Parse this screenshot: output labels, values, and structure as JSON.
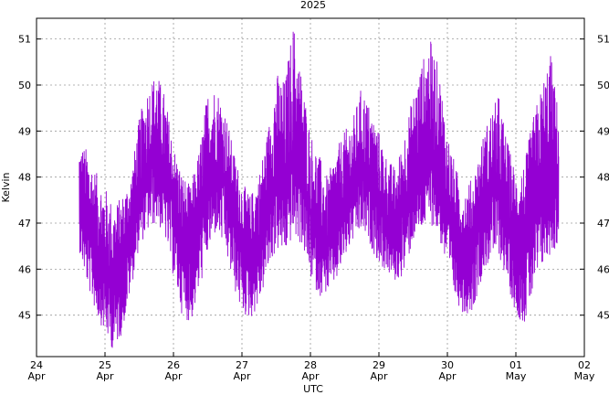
{
  "chart_data": {
    "type": "line",
    "title": "2025",
    "xlabel": "UTC",
    "ylabel": "Kelvin",
    "series_color": "#9400d3",
    "grid": true,
    "xlim": [
      "2025-04-24T00:00",
      "2025-05-02T00:00"
    ],
    "ylim": [
      44.1,
      51.45
    ],
    "x_ticks": [
      {
        "value": "2025-04-24T00:00",
        "day": "24",
        "month": "Apr"
      },
      {
        "value": "2025-04-25T00:00",
        "day": "25",
        "month": "Apr"
      },
      {
        "value": "2025-04-26T00:00",
        "day": "26",
        "month": "Apr"
      },
      {
        "value": "2025-04-27T00:00",
        "day": "27",
        "month": "Apr"
      },
      {
        "value": "2025-04-28T00:00",
        "day": "28",
        "month": "Apr"
      },
      {
        "value": "2025-04-29T00:00",
        "day": "29",
        "month": "Apr"
      },
      {
        "value": "2025-04-30T00:00",
        "day": "30",
        "month": "Apr"
      },
      {
        "value": "2025-05-01T00:00",
        "day": "01",
        "month": "May"
      },
      {
        "value": "2025-05-02T00:00",
        "day": "02",
        "month": "May"
      }
    ],
    "y_ticks": [
      "45",
      "46",
      "47",
      "48",
      "49",
      "50",
      "51"
    ],
    "series": [
      {
        "x": [
          "2025-04-24T15:00",
          "2025-04-24T18:00",
          "2025-04-24T21:00",
          "2025-04-25T00:00",
          "2025-04-25T03:00",
          "2025-04-25T06:00",
          "2025-04-25T09:00",
          "2025-04-25T12:00",
          "2025-04-25T15:00",
          "2025-04-25T18:00",
          "2025-04-25T21:00",
          "2025-04-26T00:00",
          "2025-04-26T03:00",
          "2025-04-26T06:00",
          "2025-04-26T09:00",
          "2025-04-26T12:00",
          "2025-04-26T15:00",
          "2025-04-26T18:00",
          "2025-04-26T21:00",
          "2025-04-27T00:00",
          "2025-04-27T03:00",
          "2025-04-27T06:00",
          "2025-04-27T09:00",
          "2025-04-27T12:00",
          "2025-04-27T15:00",
          "2025-04-27T18:00",
          "2025-04-27T21:00",
          "2025-04-28T00:00",
          "2025-04-28T03:00",
          "2025-04-28T06:00",
          "2025-04-28T09:00",
          "2025-04-28T12:00",
          "2025-04-28T15:00",
          "2025-04-28T18:00",
          "2025-04-28T21:00",
          "2025-04-29T00:00",
          "2025-04-29T03:00",
          "2025-04-29T06:00",
          "2025-04-29T09:00",
          "2025-04-29T12:00",
          "2025-04-29T15:00",
          "2025-04-29T18:00",
          "2025-04-29T21:00",
          "2025-04-30T00:00",
          "2025-04-30T03:00",
          "2025-04-30T06:00",
          "2025-04-30T09:00",
          "2025-04-30T12:00",
          "2025-04-30T15:00",
          "2025-04-30T18:00",
          "2025-04-30T21:00",
          "2025-05-01T00:00",
          "2025-05-01T03:00",
          "2025-05-01T06:00",
          "2025-05-01T09:00",
          "2025-05-01T12:00",
          "2025-05-01T15:00"
        ],
        "center": [
          47.3,
          46.8,
          46.4,
          46.0,
          45.6,
          46.2,
          46.9,
          47.6,
          48.1,
          48.5,
          48.0,
          47.4,
          46.6,
          46.3,
          47.0,
          47.8,
          48.2,
          47.9,
          47.3,
          46.6,
          46.3,
          46.7,
          47.4,
          48.0,
          47.8,
          48.4,
          48.1,
          47.2,
          46.7,
          46.5,
          47.0,
          47.5,
          47.8,
          48.1,
          47.9,
          47.4,
          47.1,
          46.7,
          47.4,
          47.9,
          48.3,
          48.6,
          48.2,
          47.3,
          46.6,
          46.2,
          46.6,
          47.2,
          47.6,
          47.8,
          47.0,
          46.5,
          46.7,
          47.2,
          47.5,
          47.7,
          47.8
        ],
        "min": [
          46.4,
          45.6,
          45.0,
          44.6,
          44.2,
          44.6,
          45.5,
          46.5,
          46.8,
          47.0,
          46.7,
          45.8,
          45.0,
          44.8,
          45.5,
          46.3,
          46.8,
          46.4,
          45.6,
          45.0,
          44.9,
          45.2,
          45.9,
          46.4,
          46.3,
          46.7,
          46.5,
          45.8,
          45.4,
          45.5,
          45.7,
          46.2,
          46.6,
          46.8,
          46.5,
          46.1,
          45.9,
          45.7,
          45.9,
          46.6,
          46.8,
          47.0,
          46.7,
          45.9,
          45.3,
          45.0,
          45.1,
          45.8,
          46.2,
          46.3,
          45.7,
          45.0,
          44.8,
          45.4,
          46.0,
          46.3,
          46.5
        ],
        "max": [
          48.8,
          48.6,
          48.1,
          47.8,
          47.4,
          47.6,
          48.0,
          49.3,
          50.0,
          50.3,
          49.8,
          48.7,
          48.1,
          47.8,
          48.6,
          49.9,
          50.0,
          49.5,
          48.6,
          47.9,
          47.6,
          48.1,
          49.0,
          50.3,
          50.1,
          51.4,
          50.2,
          49.0,
          48.5,
          48.0,
          48.6,
          49.0,
          49.3,
          50.0,
          49.5,
          49.0,
          48.4,
          48.2,
          49.0,
          49.8,
          50.5,
          51.0,
          50.4,
          49.0,
          48.2,
          47.8,
          48.0,
          48.8,
          49.4,
          49.8,
          48.8,
          48.1,
          48.3,
          49.3,
          50.0,
          50.8,
          49.4
        ]
      }
    ]
  }
}
